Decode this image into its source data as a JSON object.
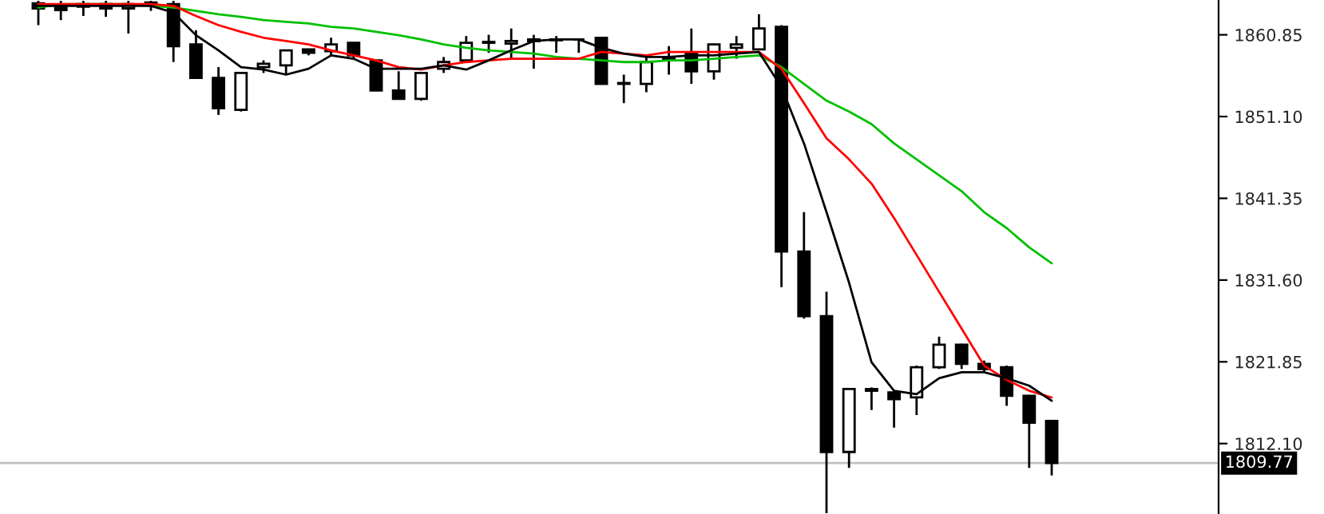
{
  "chart_data": {
    "type": "candlestick",
    "categories": [
      null,
      null,
      null,
      null,
      null,
      null,
      null,
      null,
      null,
      null,
      null,
      null,
      null,
      null,
      null,
      null,
      null,
      null,
      null,
      null,
      null,
      null,
      null,
      null,
      null,
      null,
      null,
      null,
      null,
      null,
      null,
      null,
      null,
      null,
      null,
      null,
      null,
      null,
      null,
      null,
      null,
      null,
      null,
      null,
      null,
      null
    ],
    "ohlc": [
      [
        1864.6,
        1864.9,
        1862.0,
        1864.0
      ],
      [
        1864.4,
        1864.9,
        1862.6,
        1863.8
      ],
      [
        1864.2,
        1864.9,
        1863.1,
        1864.5
      ],
      [
        1864.5,
        1864.9,
        1863.0,
        1864.0
      ],
      [
        1864.0,
        1864.9,
        1861.0,
        1864.5
      ],
      [
        1864.5,
        1864.9,
        1863.7,
        1864.7
      ],
      [
        1864.5,
        1864.9,
        1857.6,
        1859.5
      ],
      [
        1859.7,
        1861.4,
        1855.7,
        1855.7
      ],
      [
        1855.7,
        1857.0,
        1851.3,
        1852.1
      ],
      [
        1851.9,
        1856.4,
        1851.7,
        1856.3
      ],
      [
        1857.0,
        1857.8,
        1856.3,
        1857.4
      ],
      [
        1857.2,
        1859.0,
        1856.1,
        1859.0
      ],
      [
        1859.1,
        1859.1,
        1858.4,
        1858.7
      ],
      [
        1858.9,
        1860.5,
        1858.4,
        1859.7
      ],
      [
        1859.9,
        1859.9,
        1858.0,
        1858.4
      ],
      [
        1857.8,
        1857.8,
        1854.2,
        1854.2
      ],
      [
        1854.2,
        1856.5,
        1853.2,
        1853.2
      ],
      [
        1853.2,
        1856.3,
        1853.0,
        1856.3
      ],
      [
        1856.8,
        1858.2,
        1856.3,
        1857.6
      ],
      [
        1857.8,
        1860.7,
        1857.8,
        1859.9
      ],
      [
        1859.9,
        1860.85,
        1858.7,
        1860.0
      ],
      [
        1859.8,
        1861.6,
        1858.0,
        1860.1
      ],
      [
        1860.3,
        1860.85,
        1856.8,
        1860.1
      ],
      [
        1860.3,
        1860.7,
        1858.7,
        1860.2
      ],
      [
        1860.3,
        1860.35,
        1858.7,
        1860.3
      ],
      [
        1860.5,
        1860.6,
        1855.0,
        1855.0
      ],
      [
        1855.0,
        1856.1,
        1852.7,
        1855.1
      ],
      [
        1855.0,
        1858.4,
        1854.0,
        1857.6
      ],
      [
        1857.8,
        1859.5,
        1856.1,
        1858.0
      ],
      [
        1858.7,
        1861.6,
        1855.0,
        1856.5
      ],
      [
        1856.5,
        1859.8,
        1855.5,
        1859.7
      ],
      [
        1859.3,
        1860.7,
        1858.0,
        1859.7
      ],
      [
        1859.1,
        1863.3,
        1859.0,
        1861.6
      ],
      [
        1861.8,
        1862.0,
        1830.75,
        1835.0
      ],
      [
        1835.0,
        1839.7,
        1827.0,
        1827.3
      ],
      [
        1827.3,
        1830.2,
        1803.8,
        1811.1
      ],
      [
        1811.1,
        1818.6,
        1809.2,
        1818.6
      ],
      [
        1818.4,
        1818.8,
        1816.1,
        1818.6
      ],
      [
        1818.2,
        1818.4,
        1814.0,
        1817.4
      ],
      [
        1817.6,
        1821.4,
        1815.5,
        1821.2
      ],
      [
        1821.2,
        1824.85,
        1821.0,
        1823.9
      ],
      [
        1823.9,
        1824.0,
        1821.0,
        1821.6
      ],
      [
        1821.6,
        1822.0,
        1820.6,
        1821.0
      ],
      [
        1821.2,
        1821.4,
        1816.6,
        1817.8
      ],
      [
        1817.8,
        1817.9,
        1809.2,
        1814.6
      ],
      [
        1814.8,
        1814.9,
        1808.3,
        1809.77
      ]
    ],
    "series": [
      {
        "type": "line",
        "color": "#00c000",
        "values": [
          1864.1,
          1864.5,
          1864.5,
          1864.5,
          1864.5,
          1864.3,
          1864.1,
          1863.7,
          1863.3,
          1863.0,
          1862.6,
          1862.4,
          1862.2,
          1861.8,
          1861.6,
          1861.2,
          1860.8,
          1860.3,
          1859.7,
          1859.3,
          1859.0,
          1858.8,
          1858.6,
          1858.2,
          1858.0,
          1857.8,
          1857.6,
          1857.6,
          1857.8,
          1857.8,
          1858.0,
          1858.2,
          1858.4,
          1857.0,
          1855.0,
          1853.0,
          1851.7,
          1850.2,
          1847.9,
          1846.0,
          1844.1,
          1842.2,
          1839.7,
          1837.8,
          1835.5,
          1833.6
        ]
      },
      {
        "type": "line",
        "color": "#ff0000",
        "values": [
          1864.5,
          1864.5,
          1864.5,
          1864.5,
          1864.5,
          1864.5,
          1864.3,
          1863.1,
          1862.0,
          1861.2,
          1860.5,
          1860.1,
          1859.7,
          1859.0,
          1858.4,
          1857.8,
          1857.0,
          1856.7,
          1857.2,
          1857.6,
          1857.8,
          1858.0,
          1858.0,
          1858.0,
          1858.0,
          1858.8,
          1858.6,
          1858.4,
          1858.8,
          1858.8,
          1858.8,
          1858.8,
          1858.8,
          1856.8,
          1852.7,
          1848.5,
          1846.0,
          1843.1,
          1839.0,
          1834.6,
          1830.2,
          1825.8,
          1821.4,
          1819.7,
          1818.4,
          1817.6
        ]
      },
      {
        "type": "line",
        "color": "#000000",
        "values": [
          1864.3,
          1864.3,
          1864.3,
          1864.3,
          1864.3,
          1864.3,
          1863.5,
          1860.8,
          1859.0,
          1857.0,
          1856.7,
          1856.1,
          1856.8,
          1858.4,
          1858.0,
          1856.8,
          1856.8,
          1856.8,
          1857.2,
          1856.7,
          1857.8,
          1859.0,
          1860.1,
          1860.3,
          1860.3,
          1859.3,
          1858.6,
          1858.2,
          1858.2,
          1858.4,
          1858.4,
          1858.6,
          1858.8,
          1854.6,
          1847.9,
          1839.7,
          1831.3,
          1821.8,
          1818.4,
          1818.0,
          1819.9,
          1820.6,
          1820.6,
          1819.9,
          1819.0,
          1817.2
        ]
      }
    ],
    "ylim": [
      1803.7,
      1865.0
    ],
    "yticks": [
      {
        "value": 1812.1,
        "label": "1812.10"
      },
      {
        "value": 1821.85,
        "label": "1821.85"
      },
      {
        "value": 1831.6,
        "label": "1831.60"
      },
      {
        "value": 1841.35,
        "label": "1841.35"
      },
      {
        "value": 1851.1,
        "label": "1851.10"
      },
      {
        "value": 1860.85,
        "label": "1860.85"
      }
    ],
    "ref_lines": [
      {
        "axis": "y",
        "value": 1809.77,
        "label": "1809.77",
        "color": "#c0c0c0"
      }
    ],
    "grid": false,
    "legend": false
  }
}
